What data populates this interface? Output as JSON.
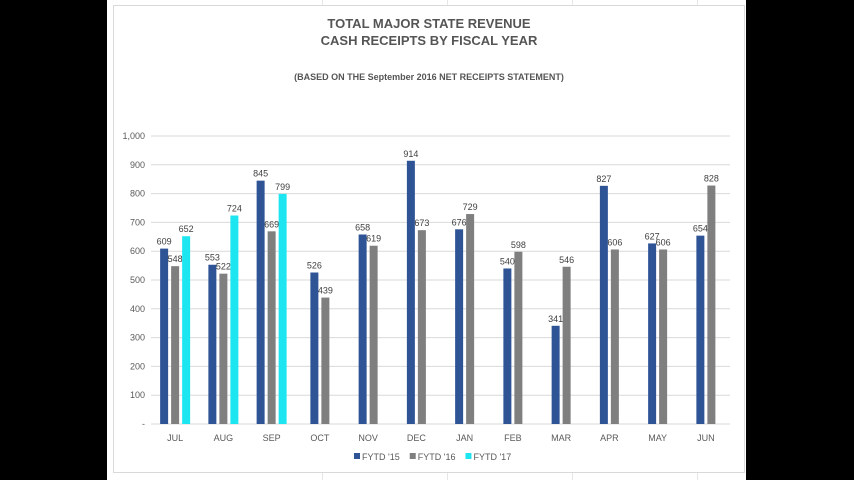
{
  "chart_data": {
    "type": "bar",
    "title": "TOTAL MAJOR  STATE REVENUE",
    "subtitle": "CASH RECEIPTS BY FISCAL YEAR",
    "note": "(BASED ON THE September  2016 NET RECEIPTS STATEMENT)",
    "xlabel": "",
    "ylabel": "",
    "ylim": [
      0,
      1000
    ],
    "yticks": [
      0,
      100,
      200,
      300,
      400,
      500,
      600,
      700,
      800,
      900,
      1000
    ],
    "ytick_labels": [
      "-",
      "100",
      "200",
      "300",
      "400",
      "500",
      "600",
      "700",
      "800",
      "900",
      "1,000"
    ],
    "grid": true,
    "legend_position": "bottom",
    "categories": [
      "JUL",
      "AUG",
      "SEP",
      "OCT",
      "NOV",
      "DEC",
      "JAN",
      "FEB",
      "MAR",
      "APR",
      "MAY",
      "JUN"
    ],
    "series": [
      {
        "name": "FYTD '15",
        "color": "#2f5496",
        "values": [
          609,
          553,
          845,
          526,
          658,
          914,
          676,
          540,
          341,
          827,
          627,
          654
        ]
      },
      {
        "name": "FYTD '16",
        "color": "#7f7f7f",
        "values": [
          548,
          522,
          669,
          439,
          619,
          673,
          729,
          598,
          546,
          606,
          606,
          828
        ]
      },
      {
        "name": "FYTD '17",
        "color": "#1ee6f0",
        "values": [
          652,
          724,
          799,
          null,
          null,
          null,
          null,
          null,
          null,
          null,
          null,
          null
        ]
      }
    ]
  }
}
